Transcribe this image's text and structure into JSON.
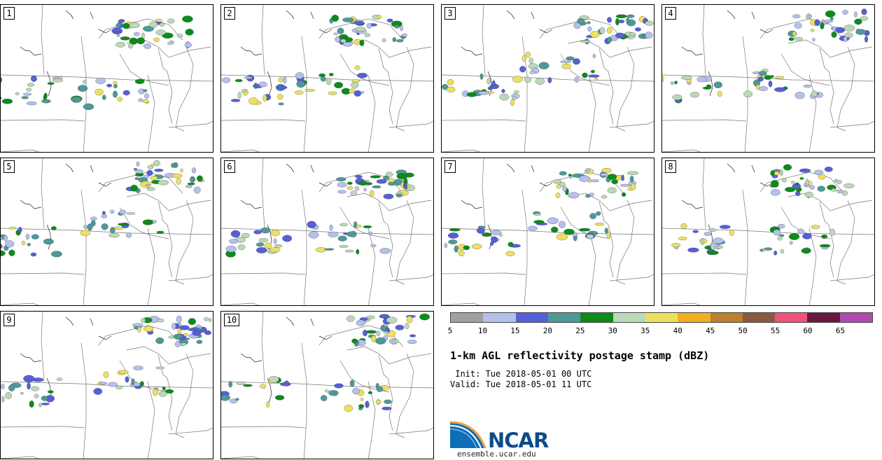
{
  "panels": [
    {
      "label": "1"
    },
    {
      "label": "2"
    },
    {
      "label": "3"
    },
    {
      "label": "4"
    },
    {
      "label": "5"
    },
    {
      "label": "6"
    },
    {
      "label": "7"
    },
    {
      "label": "8"
    },
    {
      "label": "9"
    },
    {
      "label": "10"
    }
  ],
  "colorbar": {
    "colors": [
      "#a0a0a0",
      "#b4c0ee",
      "#5560d8",
      "#4f9898",
      "#0b8c1a",
      "#bcd8b8",
      "#ede060",
      "#f0b020",
      "#bc8030",
      "#8a5a40",
      "#f0527a",
      "#6a1840",
      "#b048b0"
    ],
    "ticks": [
      "5",
      "10",
      "15",
      "20",
      "25",
      "30",
      "35",
      "40",
      "45",
      "50",
      "55",
      "60",
      "65"
    ]
  },
  "title": "1-km AGL reflectivity postage stamp (dBZ)",
  "init": " Init: Tue 2018-05-01 00 UTC",
  "valid": "Valid: Tue 2018-05-01 11 UTC",
  "logo": {
    "name": "NCAR",
    "site": "ensemble.ucar.edu"
  }
}
